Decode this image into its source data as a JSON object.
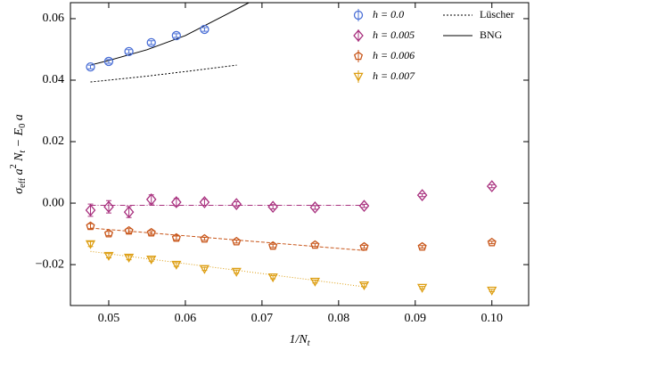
{
  "chart_data": {
    "type": "scatter",
    "xlabel": [
      "1/N",
      "t"
    ],
    "ylabel": [
      "σ",
      "eff",
      " a",
      "2",
      " N",
      "t",
      " − E",
      "0",
      " a"
    ],
    "xlim": [
      0.045,
      0.1048
    ],
    "ylim": [
      -0.0333,
      0.0652
    ],
    "xticks": [
      0.05,
      0.06,
      0.07,
      0.08,
      0.09,
      {
        "value": 0.1,
        "label": "0.10"
      }
    ],
    "yticks": [
      {
        "value": -0.02,
        "label": "−0.02"
      },
      {
        "value": 0,
        "label": "0.00"
      },
      {
        "value": 0.02,
        "label": "0.02"
      },
      {
        "value": 0.04,
        "label": "0.04"
      },
      {
        "value": 0.06,
        "label": "0.06"
      }
    ],
    "series": [
      {
        "name": "h = 0.0",
        "color": "#4a6fd6",
        "marker": "circle",
        "x": [
          0.047619,
          0.05,
          0.052632,
          0.055556,
          0.058824,
          0.0625
        ],
        "values": [
          0.0443,
          0.0461,
          0.0493,
          0.0522,
          0.0545,
          0.0565
        ],
        "errors": [
          0.0006,
          0.0006,
          0.0006,
          0.0006,
          0.0006,
          0.0006
        ]
      },
      {
        "name": "h = 0.005",
        "color": "#a8307e",
        "marker": "diamond",
        "x": [
          0.047619,
          0.05,
          0.052632,
          0.055556,
          0.058824,
          0.0625,
          0.066667,
          0.071429,
          0.076923,
          0.083333,
          0.090909,
          0.1
        ],
        "values": [
          -0.0023,
          -0.0012,
          -0.0029,
          0.0012,
          0.0003,
          0.0003,
          -0.0003,
          -0.0012,
          -0.0014,
          -0.0009,
          0.0026,
          0.0055
        ],
        "errors": [
          0.002,
          0.002,
          0.0018,
          0.0015,
          0.0012,
          0.001,
          0.0008,
          0.0007,
          0.0006,
          0.0005,
          0.0005,
          0.0005
        ]
      },
      {
        "name": "h = 0.006",
        "color": "#c8561a",
        "marker": "pentagon",
        "x": [
          0.047619,
          0.05,
          0.052632,
          0.055556,
          0.058824,
          0.0625,
          0.066667,
          0.071429,
          0.076923,
          0.083333,
          0.090909,
          0.1
        ],
        "values": [
          -0.0075,
          -0.0099,
          -0.009,
          -0.0096,
          -0.0113,
          -0.0116,
          -0.0125,
          -0.0139,
          -0.0136,
          -0.0142,
          -0.0142,
          -0.0128
        ],
        "errors": [
          0.0008,
          0.0007,
          0.0007,
          0.0006,
          0.0006,
          0.0005,
          0.0005,
          0.0005,
          0.0005,
          0.0005,
          0.0004,
          0.0004
        ]
      },
      {
        "name": "h = 0.007",
        "color": "#dd9e12",
        "marker": "triangle-down",
        "x": [
          0.047619,
          0.05,
          0.052632,
          0.055556,
          0.058824,
          0.0625,
          0.066667,
          0.071429,
          0.076923,
          0.083333,
          0.090909,
          0.1
        ],
        "values": [
          -0.0133,
          -0.0171,
          -0.0177,
          -0.0183,
          -0.02,
          -0.0214,
          -0.0223,
          -0.0241,
          -0.0255,
          -0.0267,
          -0.0275,
          -0.0284
        ],
        "errors": [
          0.0008,
          0.0007,
          0.0007,
          0.0006,
          0.0006,
          0.0005,
          0.0005,
          0.0005,
          0.0005,
          0.0005,
          0.0004,
          0.0004
        ]
      }
    ],
    "fits": [
      {
        "name": "Lüscher",
        "color": "#000000",
        "dash": "2 2",
        "x": [
          0.047619,
          0.055,
          0.06,
          0.0667
        ],
        "values": [
          0.0394,
          0.0413,
          0.0428,
          0.0449
        ]
      },
      {
        "name": "BNG",
        "color": "#000000",
        "dash": "none",
        "x": [
          0.047619,
          0.05,
          0.055,
          0.06,
          0.065,
          0.0683
        ],
        "values": [
          0.0449,
          0.0464,
          0.0499,
          0.0545,
          0.0609,
          0.0652
        ]
      },
      {
        "color": "#a8307e",
        "dash": "6 2 1 2",
        "x": [
          0.047619,
          0.083333
        ],
        "values": [
          -0.0007,
          -0.0007
        ]
      },
      {
        "color": "#c8561a",
        "dash": "4 2",
        "x": [
          0.047619,
          0.083333
        ],
        "values": [
          -0.0081,
          -0.0154
        ]
      },
      {
        "color": "#dd9e12",
        "dash": "1 2",
        "x": [
          0.047619,
          0.083333
        ],
        "values": [
          -0.0157,
          -0.0272
        ]
      }
    ]
  }
}
